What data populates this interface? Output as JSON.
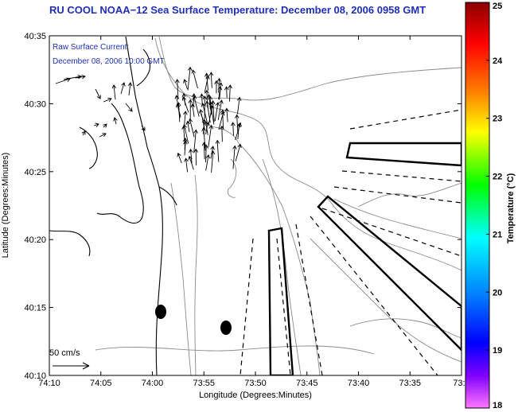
{
  "title": "RU COOL  NOAA−12  Sea Surface Temperature:  December 08, 2006 0958 GMT",
  "annotation": {
    "line1": "Raw Surface Current:",
    "line2": "December 08, 2006 10:00 GMT"
  },
  "scale_bar_label": "50 cm/s",
  "axes": {
    "xlabel": "Longitude (Degrees:Minutes)",
    "ylabel": "Latitude (Degrees:Minutes)",
    "x_ticks": [
      "74:10",
      "74:05",
      "74:00",
      "73:55",
      "73:50",
      "73:45",
      "73:40",
      "73:35",
      "73:3"
    ],
    "y_ticks": [
      "40:35",
      "40:30",
      "40:25",
      "40:20",
      "40:15",
      "40:10"
    ]
  },
  "colorbar": {
    "label": "Temperature (°C)",
    "min": 18,
    "max": 25,
    "ticks": [
      "25",
      "24",
      "23",
      "22",
      "21",
      "20",
      "19",
      "18"
    ],
    "colors": [
      "#8b0000",
      "#ff0000",
      "#ff8c00",
      "#ffff00",
      "#00ff00",
      "#00ffff",
      "#0000ff",
      "#ff55ff"
    ]
  },
  "colors": {
    "title": "#1f2fb5",
    "contour": "#8a8a8a",
    "coast": "#000000"
  }
}
